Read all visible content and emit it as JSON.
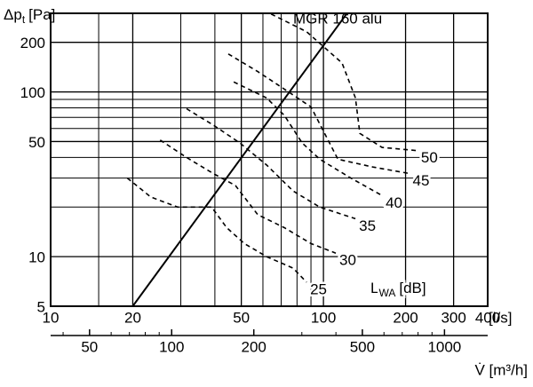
{
  "chart_data": {
    "type": "line",
    "title": "MGR 160 alu",
    "ylabel": {
      "symbol": "Δp",
      "subscript": "t",
      "unit": "[Pa]"
    },
    "xlabel": "[l/s]",
    "x2label": "V̇ [m³/h]",
    "legend_title": {
      "symbol": "L",
      "subscript": "WA",
      "unit": "[dB]"
    },
    "xscale": "log",
    "yscale": "log",
    "grid": true,
    "xlim": [
      10,
      400
    ],
    "xticks": [
      10,
      20,
      50,
      100,
      200,
      300,
      400
    ],
    "xgrid_minor": [
      15,
      30,
      40,
      60,
      70,
      80,
      90
    ],
    "ylim": [
      5,
      300
    ],
    "yticks": [
      5,
      10,
      50,
      100,
      200
    ],
    "ygrid_minor": [
      20,
      30,
      40,
      60,
      70,
      80,
      90
    ],
    "x2lim": [
      36,
      1440
    ],
    "x2ticks": [
      50,
      100,
      200,
      500,
      1000
    ],
    "x2minor": [
      40,
      60,
      70,
      80,
      90,
      300,
      400,
      600,
      700,
      800,
      900
    ],
    "system_curve": {
      "color": "#000000",
      "x": [
        20,
        122
      ],
      "y": [
        5,
        300
      ]
    },
    "series": [
      {
        "name": "25",
        "color": "#000000",
        "x": [
          19.1,
          23.3,
          29.2,
          38.9,
          44.2,
          51.3,
          61.9,
          77.5,
          86.7
        ],
        "y": [
          30,
          23,
          20,
          20,
          15,
          12,
          10,
          8.5,
          7
        ]
      },
      {
        "name": "30",
        "color": "#000000",
        "x": [
          25.2,
          31.5,
          39.4,
          47.6,
          57.4,
          71.9,
          90,
          111
        ],
        "y": [
          51,
          40,
          32,
          27,
          18,
          15,
          12,
          10.5
        ]
      },
      {
        "name": "35",
        "color": "#000000",
        "x": [
          31.5,
          39.4,
          49.4,
          61.9,
          77.5,
          97,
          131
        ],
        "y": [
          79,
          63,
          49,
          36,
          25,
          20,
          17
        ]
      },
      {
        "name": "40",
        "color": "#000000",
        "x": [
          46.9,
          61.9,
          71.9,
          83.5,
          97,
          126,
          164
        ],
        "y": [
          115,
          92,
          72,
          49,
          39,
          30,
          23.5
        ]
      },
      {
        "name": "45",
        "color": "#000000",
        "x": [
          44.8,
          57.4,
          71.9,
          90,
          101,
          113,
          152,
          206
        ],
        "y": [
          170,
          133,
          104,
          81,
          56,
          39,
          35,
          32
        ]
      },
      {
        "name": "50",
        "color": "#000000",
        "x": [
          64.3,
          86.7,
          117,
          131,
          136,
          164,
          221
        ],
        "y": [
          297,
          232,
          150,
          92,
          56,
          46,
          44
        ]
      }
    ]
  }
}
